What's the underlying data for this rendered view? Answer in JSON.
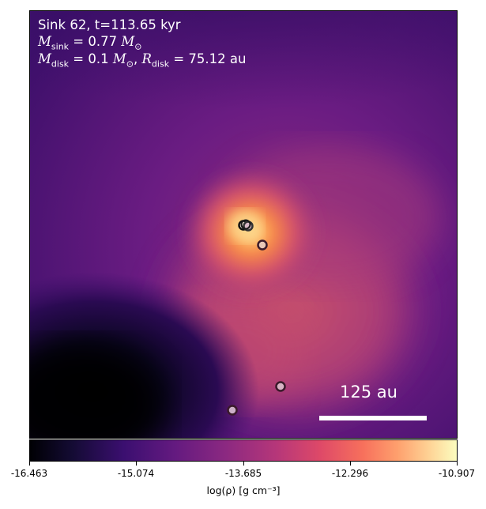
{
  "header": {
    "title": "Sink 62, t=113.65 kyr",
    "sink_mass_value": "= 0.77",
    "disk_mass_value": "= 0.1",
    "disk_radius_value": "= 75.12",
    "mass_unit": "M",
    "radius_unit": "au"
  },
  "scale_bar": {
    "label": "125 au"
  },
  "colorbar": {
    "ticks": [
      "-16.463",
      "-15.074",
      "-13.685",
      "-12.296",
      "-10.907"
    ],
    "label": "log(ρ) [g cm⁻³]",
    "colors": [
      "#000004",
      "#3b0f70",
      "#8c2981",
      "#de4968",
      "#fe9f6d",
      "#fcfdbf"
    ]
  },
  "sinks": {
    "count": 6
  }
}
